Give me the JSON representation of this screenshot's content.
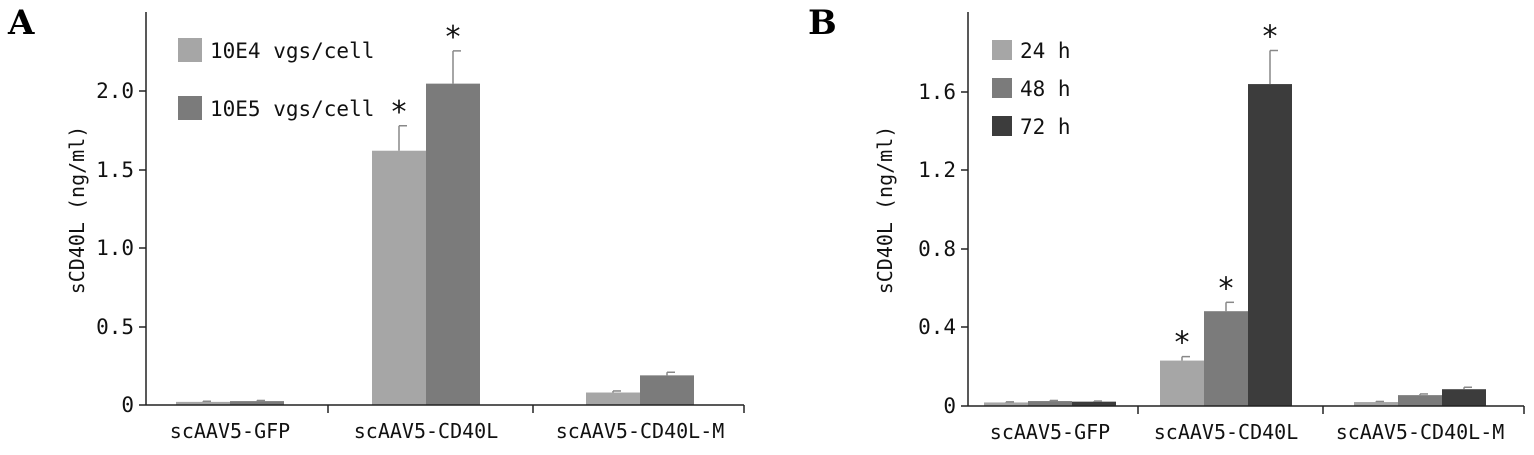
{
  "chart_data": [
    {
      "type": "bar",
      "panel_label": "A",
      "ylabel": "sCD40L (ng/ml)",
      "xlabel": "",
      "categories": [
        "scAAV5-GFP",
        "scAAV5-CD40L",
        "scAAV5-CD40L-M"
      ],
      "ylim": [
        0,
        2.5
      ],
      "yticks": [
        "0",
        "0.5",
        "1.0",
        "1.5",
        "2.0"
      ],
      "legend_position": "top-left",
      "grid": false,
      "series": [
        {
          "name": "10E4 vgs/cell",
          "color": "#a6a6a6",
          "values": [
            0.02,
            1.63,
            0.08
          ],
          "errors": [
            0.004,
            0.16,
            0.01
          ]
        },
        {
          "name": "10E5 vgs/cell",
          "color": "#7b7b7b",
          "values": [
            0.025,
            2.06,
            0.19
          ],
          "errors": [
            0.004,
            0.21,
            0.02
          ]
        }
      ],
      "significance": [
        {
          "category": 1,
          "series": 0,
          "label": "*"
        },
        {
          "category": 1,
          "series": 1,
          "label": "*"
        }
      ]
    },
    {
      "type": "bar",
      "panel_label": "B",
      "ylabel": "sCD40L (ng/ml)",
      "xlabel": "",
      "categories": [
        "scAAV5-GFP",
        "scAAV5-CD40L",
        "scAAV5-CD40L-M"
      ],
      "ylim": [
        0,
        2.0
      ],
      "yticks": [
        "0",
        "0.4",
        "0.8",
        "1.2",
        "1.6"
      ],
      "legend_position": "top-left",
      "grid": false,
      "series": [
        {
          "name": "24 h",
          "color": "#a6a6a6",
          "values": [
            0.018,
            0.23,
            0.02
          ],
          "errors": [
            0.003,
            0.02,
            0.003
          ]
        },
        {
          "name": "48 h",
          "color": "#7b7b7b",
          "values": [
            0.025,
            0.48,
            0.055
          ],
          "errors": [
            0.003,
            0.045,
            0.006
          ]
        },
        {
          "name": "72 h",
          "color": "#3c3c3c",
          "values": [
            0.022,
            1.63,
            0.085
          ],
          "errors": [
            0.003,
            0.17,
            0.01
          ]
        }
      ],
      "significance": [
        {
          "category": 1,
          "series": 0,
          "label": "*"
        },
        {
          "category": 1,
          "series": 1,
          "label": "*"
        },
        {
          "category": 1,
          "series": 2,
          "label": "*"
        }
      ]
    }
  ]
}
